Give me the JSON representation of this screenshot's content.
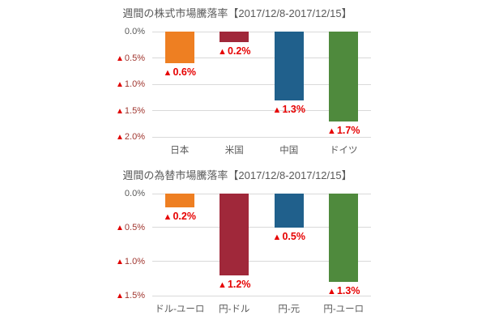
{
  "page": {
    "background": "#ffffff"
  },
  "colors": {
    "title_text": "#595959",
    "category_text": "#595959",
    "tick_zero_text": "#595959",
    "tick_negative_text": "#A0362F",
    "triangle_red": "#E00000",
    "data_label_red": "#E60000",
    "gridline": "#D9D9D9"
  },
  "chart_data": [
    {
      "type": "bar",
      "title": "週間の株式市場騰落率【2017/12/8-2017/12/15】",
      "subtitle": "",
      "categories": [
        "日本",
        "米国",
        "中国",
        "ドイツ"
      ],
      "values": [
        -0.6,
        -0.2,
        -1.3,
        -1.7
      ],
      "value_labels": [
        "▲0.6%",
        "▲0.2%",
        "▲1.3%",
        "▲1.7%"
      ],
      "bar_colors": [
        "#EE7F22",
        "#A0283A",
        "#20608C",
        "#4F8A3D"
      ],
      "xlabel": "",
      "ylabel": "",
      "ylim": [
        0,
        -2.0
      ],
      "yticks": [
        {
          "value": 0,
          "label": "0.0%"
        },
        {
          "value": -0.5,
          "label": "▲0.5%"
        },
        {
          "value": -1.0,
          "label": "▲1.0%"
        },
        {
          "value": -1.5,
          "label": "▲1.5%"
        },
        {
          "value": -2.0,
          "label": "▲2.0%"
        }
      ],
      "grid": true,
      "legend": "none",
      "bars_hang_from_zero_line": true
    },
    {
      "type": "bar",
      "title": "週間の為替市場騰落率【2017/12/8-2017/12/15】",
      "subtitle": "",
      "categories": [
        "ドル-ユーロ",
        "円-ドル",
        "円-元",
        "円-ユーロ"
      ],
      "values": [
        -0.2,
        -1.2,
        -0.5,
        -1.3
      ],
      "value_labels": [
        "▲0.2%",
        "▲1.2%",
        "▲0.5%",
        "▲1.3%"
      ],
      "bar_colors": [
        "#EE7F22",
        "#A0283A",
        "#20608C",
        "#4F8A3D"
      ],
      "xlabel": "",
      "ylabel": "",
      "ylim": [
        0,
        -1.5
      ],
      "yticks": [
        {
          "value": 0,
          "label": "0.0%"
        },
        {
          "value": -0.5,
          "label": "▲0.5%"
        },
        {
          "value": -1.0,
          "label": "▲1.0%"
        },
        {
          "value": -1.5,
          "label": "▲1.5%"
        }
      ],
      "grid": true,
      "legend": "none",
      "bars_hang_from_zero_line": true
    }
  ]
}
